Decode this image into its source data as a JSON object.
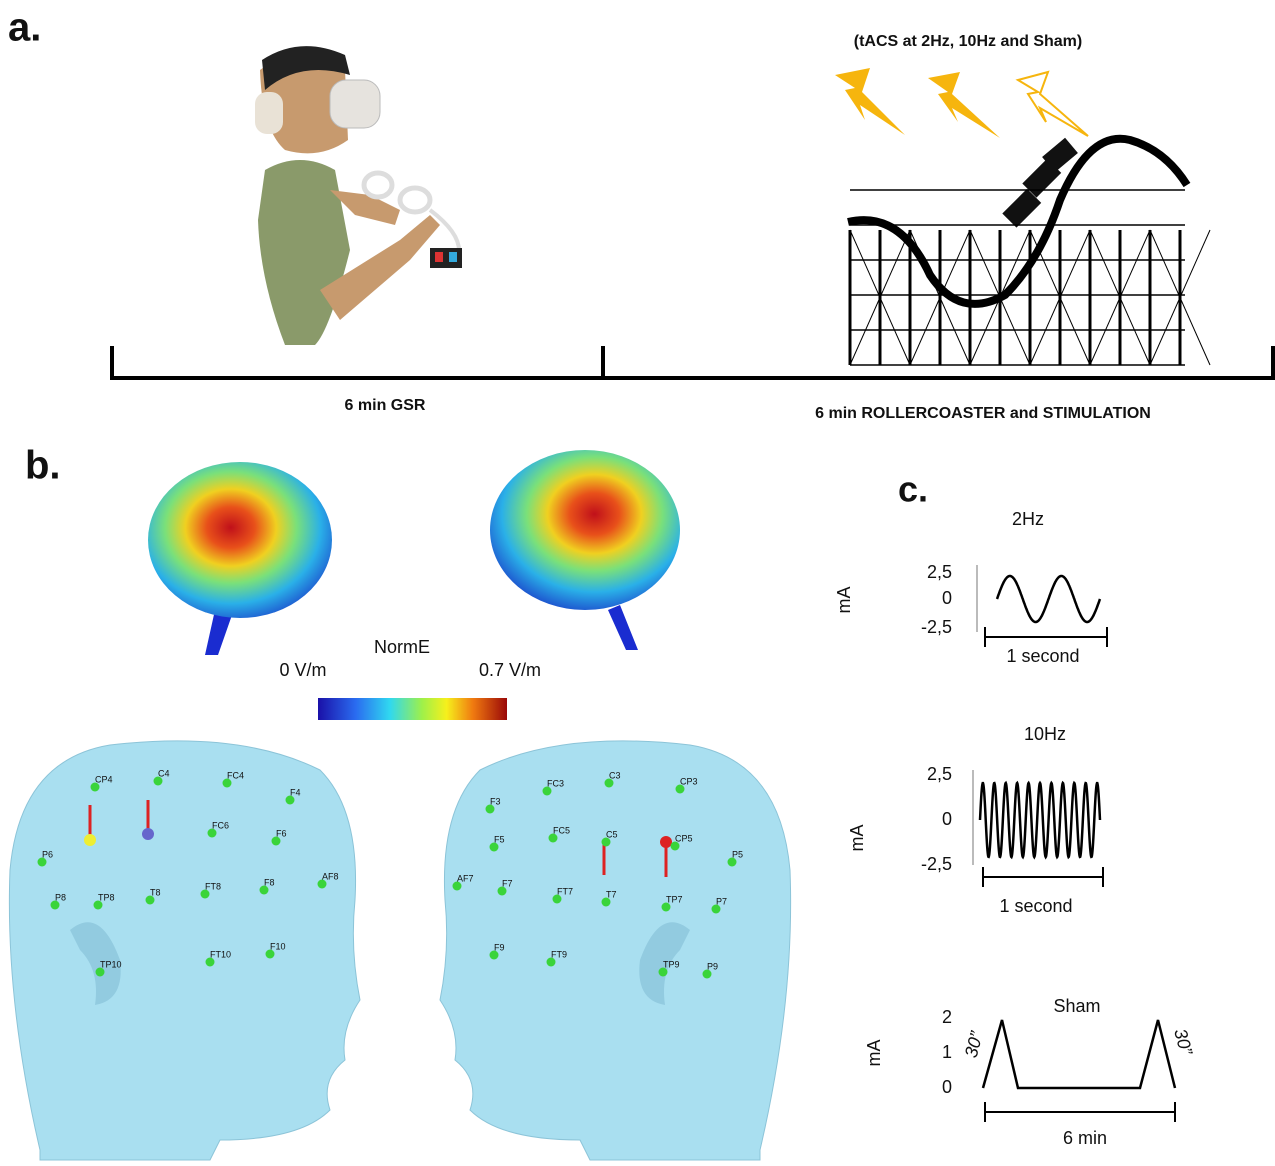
{
  "panel_a": {
    "label": "a.",
    "stimulation_note": "(tACS at 2Hz, 10Hz and Sham)",
    "phase_1": "6 min GSR",
    "phase_2": "6 min ROLLERCOASTER and STIMULATION"
  },
  "panel_b": {
    "label": "b.",
    "colorbar_title": "NormE",
    "colorbar_min": "0 V/m",
    "colorbar_max": "0.7 V/m",
    "left_head_electrodes": [
      "CP4",
      "C4",
      "FC4",
      "F4",
      "P6",
      "FC6",
      "F6",
      "P8",
      "TP8",
      "T8",
      "FT8",
      "F8",
      "AF8",
      "TP10",
      "FT10",
      "F10"
    ],
    "right_head_electrodes": [
      "FC3",
      "C3",
      "CP3",
      "F3",
      "F5",
      "FC5",
      "C5",
      "CP5",
      "P5",
      "AF7",
      "F7",
      "FT7",
      "T7",
      "TP7",
      "P7",
      "F9",
      "FT9",
      "TP9",
      "P9"
    ]
  },
  "panel_c": {
    "label": "c.",
    "waveforms": [
      {
        "title": "2Hz",
        "unit": "mA",
        "ticks": [
          "2,5",
          "0",
          "-2,5"
        ],
        "duration": "1 second"
      },
      {
        "title": "10Hz",
        "unit": "mA",
        "ticks": [
          "2,5",
          "0",
          "-2,5"
        ],
        "duration": "1 second"
      },
      {
        "title": "Sham",
        "unit": "mA",
        "ticks": [
          "2",
          "1",
          "0"
        ],
        "ramp_up": "30”",
        "ramp_down": "30”",
        "duration": "6 min"
      }
    ]
  }
}
